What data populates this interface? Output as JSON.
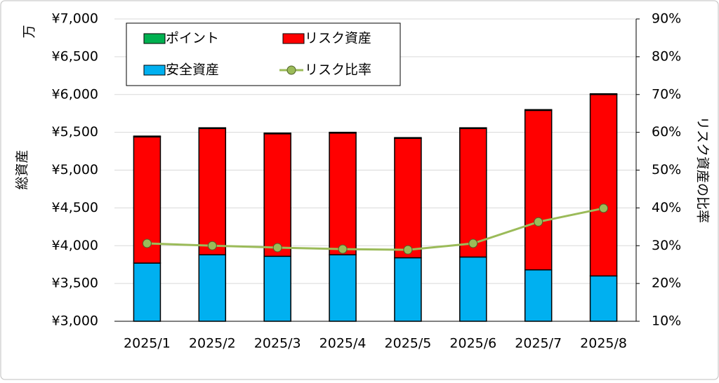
{
  "chart_data": {
    "type": "bar",
    "categories": [
      "2025/1",
      "2025/2",
      "2025/3",
      "2025/4",
      "2025/5",
      "2025/6",
      "2025/7",
      "2025/8"
    ],
    "series": [
      {
        "name": "安全資産",
        "color": "#00b0f0",
        "values": [
          3770,
          3880,
          3860,
          3880,
          3840,
          3850,
          3680,
          3600
        ]
      },
      {
        "name": "リスク資産",
        "color": "#ff0000",
        "values": [
          1670,
          1670,
          1620,
          1610,
          1580,
          1700,
          2110,
          2400
        ]
      },
      {
        "name": "ポイント",
        "color": "#00b050",
        "values": [
          10,
          10,
          10,
          10,
          10,
          10,
          10,
          10
        ]
      },
      {
        "name": "リスク比率",
        "color": "#9bbb59",
        "type": "line",
        "axis": "y2",
        "values": [
          30.6,
          30.0,
          29.5,
          29.1,
          28.9,
          30.6,
          36.3,
          39.9
        ]
      }
    ],
    "y_label": "総資産",
    "y_unit": "万",
    "y2_label": "リスク資産の比率",
    "ylim": [
      3000,
      7000
    ],
    "yticks": [
      {
        "value": 3000,
        "label": "¥3,000"
      },
      {
        "value": 3500,
        "label": "¥3,500"
      },
      {
        "value": 4000,
        "label": "¥4,000"
      },
      {
        "value": 4500,
        "label": "¥4,500"
      },
      {
        "value": 5000,
        "label": "¥5,000"
      },
      {
        "value": 5500,
        "label": "¥5,500"
      },
      {
        "value": 6000,
        "label": "¥6,000"
      },
      {
        "value": 6500,
        "label": "¥6,500"
      },
      {
        "value": 7000,
        "label": "¥7,000"
      }
    ],
    "y2lim": [
      10,
      90
    ],
    "y2ticks": [
      {
        "value": 10,
        "label": "10%"
      },
      {
        "value": 20,
        "label": "20%"
      },
      {
        "value": 30,
        "label": "30%"
      },
      {
        "value": 40,
        "label": "40%"
      },
      {
        "value": 50,
        "label": "50%"
      },
      {
        "value": 60,
        "label": "60%"
      },
      {
        "value": 70,
        "label": "70%"
      },
      {
        "value": 80,
        "label": "80%"
      },
      {
        "value": 90,
        "label": "90%"
      }
    ],
    "grid": true,
    "legend": "upper left"
  }
}
